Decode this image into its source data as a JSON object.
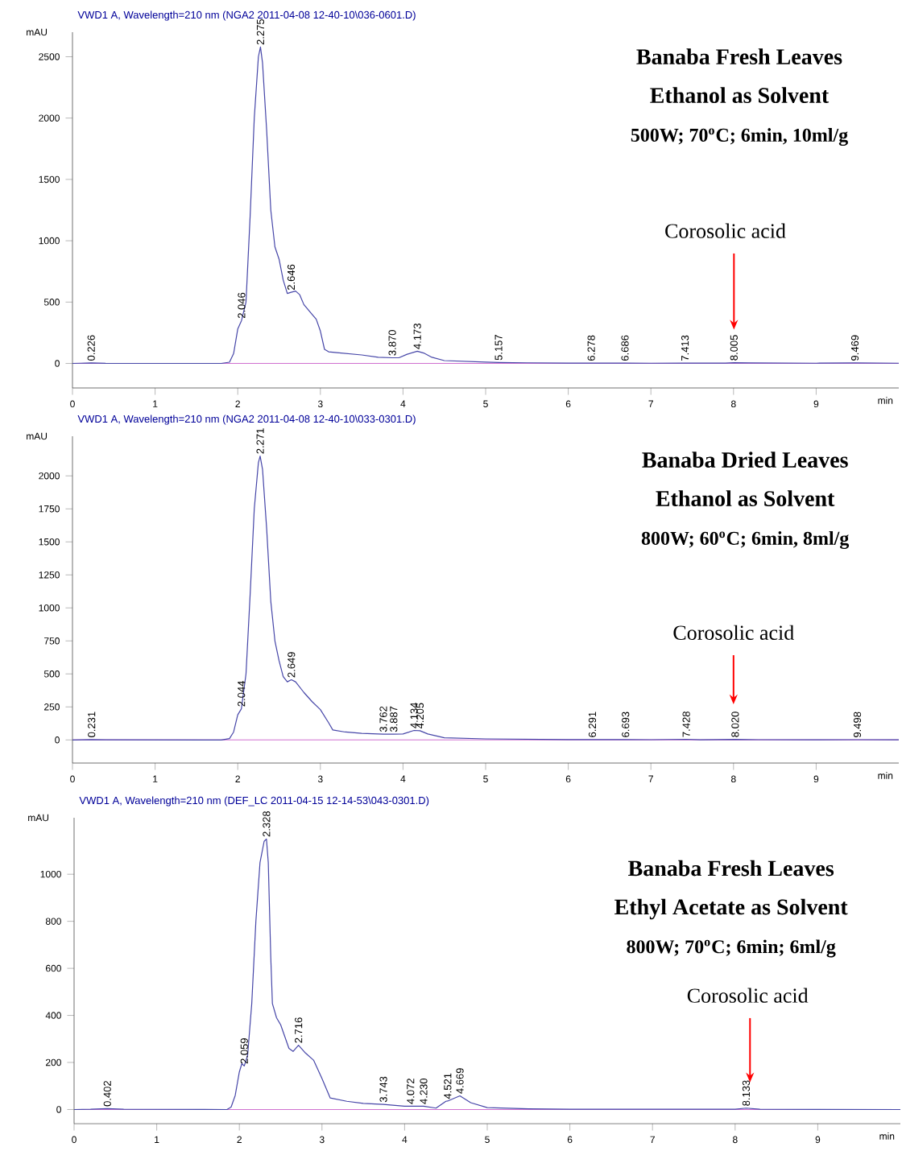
{
  "chart_data": [
    {
      "type": "line",
      "title": "VWD1 A, Wavelength=210 nm (NGA2 2011-04-08 12-40-10\\036-0601.D)",
      "xlabel": "min",
      "ylabel": "mAU",
      "x": [
        0,
        0.1,
        0.226,
        0.4,
        1.8,
        1.9,
        1.95,
        2.0,
        2.046,
        2.1,
        2.15,
        2.2,
        2.25,
        2.275,
        2.3,
        2.35,
        2.4,
        2.45,
        2.5,
        2.55,
        2.6,
        2.646,
        2.7,
        2.75,
        2.8,
        2.9,
        2.95,
        3.0,
        3.05,
        3.1,
        3.2,
        3.5,
        3.7,
        3.87,
        3.95,
        4.05,
        4.173,
        4.25,
        4.35,
        4.5,
        5.0,
        5.157,
        5.5,
        6.0,
        6.278,
        6.686,
        7.0,
        7.413,
        7.9,
        8.005,
        8.2,
        9.0,
        9.469,
        10
      ],
      "series": [
        {
          "color": "#4646a8",
          "values": [
            0,
            2,
            4,
            1,
            0,
            10,
            80,
            280,
            350,
            500,
            1200,
            2000,
            2500,
            2580,
            2450,
            1900,
            1250,
            950,
            850,
            680,
            570,
            580,
            590,
            560,
            480,
            400,
            360,
            264,
            115,
            95,
            88,
            69,
            50,
            46,
            46,
            75,
            99,
            85,
            50,
            23,
            11,
            8,
            5,
            3,
            3,
            3,
            2,
            3,
            3,
            6,
            4,
            2,
            4,
            2
          ]
        }
      ],
      "annotations": [
        "Banaba Fresh Leaves",
        "Ethanol as Solvent",
        "500W; 70$^{o}$C; 6min, 10ml/g",
        "Corosolic acid",
        {
          "text": "0.226",
          "x": 0.226,
          "y": 4
        },
        {
          "text": "2.046",
          "x": 2.046,
          "y": 350
        },
        {
          "text": "2.275",
          "x": 2.275,
          "y": 2580
        },
        {
          "text": "2.646",
          "x": 2.646,
          "y": 580
        },
        {
          "text": "3.870",
          "x": 3.87,
          "y": 46
        },
        {
          "text": "4.173",
          "x": 4.173,
          "y": 99
        },
        {
          "text": "5.157",
          "x": 5.157,
          "y": 8
        },
        {
          "text": "6.278",
          "x": 6.278,
          "y": 3
        },
        {
          "text": "6.686",
          "x": 6.686,
          "y": 3
        },
        {
          "text": "7.413",
          "x": 7.413,
          "y": 3
        },
        {
          "text": "8.005",
          "x": 8.005,
          "y": 6
        },
        {
          "text": "9.469",
          "x": 9.469,
          "y": 4
        }
      ],
      "ref_lines": [
        {
          "axis": "y",
          "value": 0,
          "color": "#d070d0"
        }
      ],
      "xlim": [
        0,
        10
      ],
      "xticks": [
        0,
        1,
        2,
        3,
        4,
        5,
        6,
        7,
        8,
        9
      ],
      "ylim": [
        -200,
        2700
      ],
      "yticks": [
        0,
        500,
        1000,
        1500,
        2000,
        2500
      ]
    },
    {
      "type": "line",
      "title": "VWD1 A, Wavelength=210 nm (NGA2 2011-04-08 12-40-10\\033-0301.D)",
      "xlabel": "min",
      "ylabel": "mAU",
      "x": [
        0,
        0.231,
        0.4,
        1.8,
        1.9,
        1.95,
        2.0,
        2.044,
        2.1,
        2.15,
        2.2,
        2.25,
        2.271,
        2.3,
        2.35,
        2.4,
        2.45,
        2.5,
        2.55,
        2.6,
        2.649,
        2.7,
        2.8,
        2.9,
        3.0,
        3.1,
        3.15,
        3.3,
        3.5,
        3.762,
        3.887,
        4.0,
        4.134,
        4.205,
        4.3,
        4.5,
        5.0,
        6.0,
        6.291,
        6.693,
        7.0,
        7.428,
        7.6,
        8.02,
        8.3,
        9.0,
        9.498,
        10
      ],
      "series": [
        {
          "color": "#4646a8",
          "values": [
            0,
            3,
            1,
            0,
            10,
            60,
            190,
            236,
            500,
            1100,
            1750,
            2100,
            2150,
            2050,
            1600,
            1050,
            750,
            600,
            480,
            440,
            456,
            440,
            360,
            290,
            230,
            130,
            76,
            60,
            50,
            44,
            44,
            45,
            72,
            70,
            45,
            16,
            8,
            3,
            3,
            3,
            2,
            5,
            1,
            4,
            2,
            1,
            2,
            1
          ]
        }
      ],
      "annotations": [
        "Banaba Dried Leaves",
        "Ethanol as Solvent",
        "800W; 60$^{o}$C; 6min, 8ml/g",
        "Corosolic acid",
        {
          "text": "0.231",
          "x": 0.231,
          "y": 3
        },
        {
          "text": "2.044",
          "x": 2.044,
          "y": 236
        },
        {
          "text": "2.271",
          "x": 2.271,
          "y": 2150
        },
        {
          "text": "2.649",
          "x": 2.649,
          "y": 456
        },
        {
          "text": "3.762",
          "x": 3.762,
          "y": 44
        },
        {
          "text": "3.887",
          "x": 3.887,
          "y": 44
        },
        {
          "text": "4.134",
          "x": 4.134,
          "y": 72
        },
        {
          "text": "4.205",
          "x": 4.205,
          "y": 70
        },
        {
          "text": "6.291",
          "x": 6.291,
          "y": 3
        },
        {
          "text": "6.693",
          "x": 6.693,
          "y": 3
        },
        {
          "text": "7.428",
          "x": 7.428,
          "y": 5
        },
        {
          "text": "8.020",
          "x": 8.02,
          "y": 4
        },
        {
          "text": "9.498",
          "x": 9.498,
          "y": 2
        }
      ],
      "ref_lines": [
        {
          "axis": "y",
          "value": 0,
          "color": "#d070d0"
        }
      ],
      "xlim": [
        0,
        10
      ],
      "xticks": [
        0,
        1,
        2,
        3,
        4,
        5,
        6,
        7,
        8,
        9
      ],
      "ylim": [
        -175,
        2300
      ],
      "yticks": [
        0,
        250,
        500,
        750,
        1000,
        1250,
        1500,
        1750,
        2000
      ]
    },
    {
      "type": "line",
      "title": "VWD1 A, Wavelength=210 nm (DEF_LC 2011-04-15 12-14-53\\043-0301.D)",
      "xlabel": "min",
      "ylabel": "mAU",
      "x": [
        0,
        0.2,
        0.402,
        0.6,
        1.85,
        1.9,
        1.95,
        2.0,
        2.03,
        2.059,
        2.1,
        2.15,
        2.2,
        2.25,
        2.3,
        2.328,
        2.35,
        2.38,
        2.4,
        2.45,
        2.5,
        2.55,
        2.6,
        2.65,
        2.716,
        2.8,
        2.9,
        3.0,
        3.1,
        3.3,
        3.5,
        3.743,
        4.0,
        4.072,
        4.23,
        4.38,
        4.5,
        4.521,
        4.6,
        4.669,
        4.8,
        5.0,
        5.5,
        6.0,
        8.0,
        8.133,
        8.3,
        10
      ],
      "series": [
        {
          "color": "#4646a8",
          "values": [
            0,
            1,
            4,
            1,
            0,
            10,
            60,
            160,
            195,
            185,
            230,
            450,
            800,
            1050,
            1140,
            1150,
            1050,
            650,
            450,
            390,
            360,
            310,
            260,
            247,
            273,
            240,
            209,
            132,
            49,
            35,
            26,
            22,
            14,
            14,
            14,
            6,
            35,
            36,
            48,
            58,
            29,
            8,
            3,
            1,
            1,
            6,
            1,
            0
          ]
        }
      ],
      "annotations": [
        "Banaba Fresh Leaves",
        "Ethyl Acetate as Solvent",
        "800W; 70$^{o}$C; 6min; 6ml/g",
        "Corosolic acid",
        {
          "text": "0.402",
          "x": 0.402,
          "y": 4
        },
        {
          "text": "2.059",
          "x": 2.059,
          "y": 185
        },
        {
          "text": "2.328",
          "x": 2.328,
          "y": 1150
        },
        {
          "text": "2.716",
          "x": 2.716,
          "y": 273
        },
        {
          "text": "3.743",
          "x": 3.743,
          "y": 22
        },
        {
          "text": "4.072",
          "x": 4.072,
          "y": 14
        },
        {
          "text": "4.230",
          "x": 4.23,
          "y": 14
        },
        {
          "text": "4.521",
          "x": 4.521,
          "y": 36
        },
        {
          "text": "4.669",
          "x": 4.669,
          "y": 58
        },
        {
          "text": "8.133",
          "x": 8.133,
          "y": 6
        }
      ],
      "ref_lines": [
        {
          "axis": "y",
          "value": 0,
          "color": "#d070d0"
        }
      ],
      "xlim": [
        0,
        10
      ],
      "xticks": [
        0,
        1,
        2,
        3,
        4,
        5,
        6,
        7,
        8,
        9
      ],
      "ylim": [
        -60,
        1240
      ],
      "yticks": [
        0,
        200,
        400,
        600,
        800,
        1000
      ]
    }
  ]
}
